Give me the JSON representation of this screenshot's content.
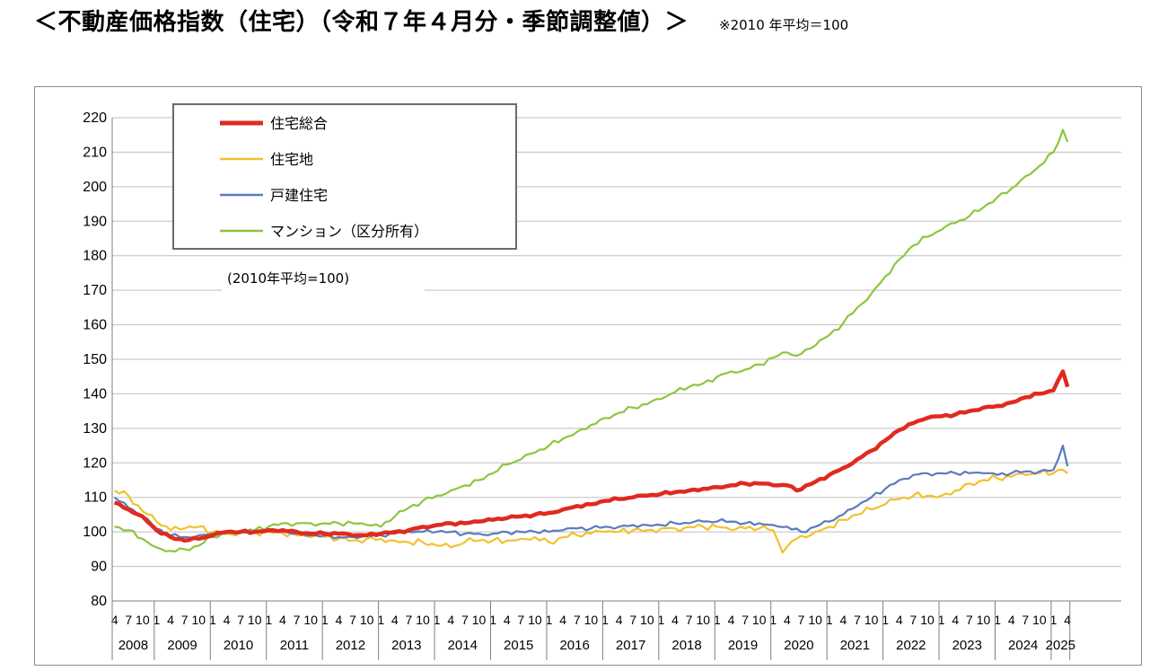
{
  "header": {
    "title": "＜不動産価格指数（住宅）（令和７年４月分・季節調整値）＞",
    "note": "※2010 年平均＝100"
  },
  "chart_data": {
    "type": "line",
    "unit_label": "(2010年平均=100)",
    "ylim": [
      80,
      220
    ],
    "y_ticks": [
      80,
      90,
      100,
      110,
      120,
      130,
      140,
      150,
      160,
      170,
      180,
      190,
      200,
      210,
      220
    ],
    "grid": true,
    "legend_position": "top-left",
    "x_month_ticks": [
      "1",
      "4",
      "7",
      "10"
    ],
    "years": [
      "2008",
      "2009",
      "2010",
      "2011",
      "2012",
      "2013",
      "2014",
      "2015",
      "2016",
      "2017",
      "2018",
      "2019",
      "2020",
      "2021",
      "2022",
      "2023",
      "2024",
      "2025"
    ],
    "x_start": "2008-04",
    "x_end": "2025-04",
    "series": [
      {
        "name": "住宅総合",
        "color": "#e02a20",
        "points": [
          [
            "2008-04",
            108.5
          ],
          [
            "2008-07",
            106.5
          ],
          [
            "2008-10",
            104.5
          ],
          [
            "2009-01",
            100.5
          ],
          [
            "2009-04",
            98.5
          ],
          [
            "2009-07",
            97.5
          ],
          [
            "2009-10",
            98
          ],
          [
            "2010-01",
            99
          ],
          [
            "2010-04",
            100
          ],
          [
            "2010-07",
            100
          ],
          [
            "2010-10",
            100
          ],
          [
            "2011-01",
            100.5
          ],
          [
            "2011-04",
            100.5
          ],
          [
            "2011-07",
            100
          ],
          [
            "2011-10",
            99.5
          ],
          [
            "2012-01",
            99.5
          ],
          [
            "2012-04",
            99.5
          ],
          [
            "2012-07",
            99
          ],
          [
            "2012-10",
            99
          ],
          [
            "2013-01",
            99.5
          ],
          [
            "2013-04",
            100
          ],
          [
            "2013-07",
            100.5
          ],
          [
            "2013-10",
            101.5
          ],
          [
            "2014-01",
            102
          ],
          [
            "2014-04",
            102.5
          ],
          [
            "2014-07",
            102.5
          ],
          [
            "2014-10",
            103
          ],
          [
            "2015-01",
            103.5
          ],
          [
            "2015-04",
            104
          ],
          [
            "2015-07",
            104.5
          ],
          [
            "2015-10",
            105
          ],
          [
            "2016-01",
            105.5
          ],
          [
            "2016-04",
            106.5
          ],
          [
            "2016-07",
            107.5
          ],
          [
            "2016-10",
            108
          ],
          [
            "2017-01",
            109
          ],
          [
            "2017-04",
            109.5
          ],
          [
            "2017-07",
            110
          ],
          [
            "2017-10",
            110.5
          ],
          [
            "2018-01",
            111
          ],
          [
            "2018-04",
            111.5
          ],
          [
            "2018-07",
            112
          ],
          [
            "2018-10",
            112.5
          ],
          [
            "2019-01",
            113
          ],
          [
            "2019-04",
            113.5
          ],
          [
            "2019-07",
            114
          ],
          [
            "2019-10",
            114
          ],
          [
            "2020-01",
            113.5
          ],
          [
            "2020-04",
            113.5
          ],
          [
            "2020-06",
            112
          ],
          [
            "2020-10",
            114.5
          ],
          [
            "2021-01",
            116.5
          ],
          [
            "2021-04",
            118.5
          ],
          [
            "2021-07",
            121
          ],
          [
            "2021-10",
            123.5
          ],
          [
            "2022-01",
            126.5
          ],
          [
            "2022-04",
            129.5
          ],
          [
            "2022-07",
            131.5
          ],
          [
            "2022-10",
            133
          ],
          [
            "2023-01",
            133.5
          ],
          [
            "2023-04",
            134
          ],
          [
            "2023-07",
            135
          ],
          [
            "2023-10",
            136
          ],
          [
            "2024-01",
            136.5
          ],
          [
            "2024-04",
            137.5
          ],
          [
            "2024-07",
            139
          ],
          [
            "2024-10",
            140
          ],
          [
            "2025-01",
            141
          ],
          [
            "2025-03",
            146.5
          ],
          [
            "2025-04",
            142
          ]
        ]
      },
      {
        "name": "住宅地",
        "color": "#f2c12e",
        "points": [
          [
            "2008-04",
            112
          ],
          [
            "2008-07",
            110.5
          ],
          [
            "2008-10",
            106
          ],
          [
            "2009-01",
            103
          ],
          [
            "2009-04",
            100.5
          ],
          [
            "2009-07",
            101
          ],
          [
            "2009-10",
            101.5
          ],
          [
            "2010-01",
            100
          ],
          [
            "2010-04",
            99.5
          ],
          [
            "2010-07",
            100
          ],
          [
            "2010-10",
            100
          ],
          [
            "2011-01",
            100
          ],
          [
            "2011-04",
            99.5
          ],
          [
            "2011-07",
            99
          ],
          [
            "2011-10",
            98.5
          ],
          [
            "2012-01",
            98.5
          ],
          [
            "2012-04",
            98
          ],
          [
            "2012-07",
            97.5
          ],
          [
            "2012-10",
            98
          ],
          [
            "2013-01",
            98
          ],
          [
            "2013-04",
            97.5
          ],
          [
            "2013-07",
            97
          ],
          [
            "2013-10",
            97
          ],
          [
            "2014-01",
            96
          ],
          [
            "2014-04",
            95.5
          ],
          [
            "2014-07",
            97
          ],
          [
            "2014-10",
            97.5
          ],
          [
            "2015-01",
            97.5
          ],
          [
            "2015-04",
            97.5
          ],
          [
            "2015-07",
            98
          ],
          [
            "2015-10",
            98.5
          ],
          [
            "2016-01",
            97
          ],
          [
            "2016-04",
            98.5
          ],
          [
            "2016-07",
            99
          ],
          [
            "2016-10",
            99.5
          ],
          [
            "2017-01",
            100
          ],
          [
            "2017-04",
            100
          ],
          [
            "2017-07",
            100.5
          ],
          [
            "2017-10",
            100.5
          ],
          [
            "2018-01",
            101
          ],
          [
            "2018-04",
            101
          ],
          [
            "2018-07",
            101.5
          ],
          [
            "2018-10",
            101.5
          ],
          [
            "2019-01",
            101.5
          ],
          [
            "2019-04",
            100.5
          ],
          [
            "2019-07",
            101
          ],
          [
            "2019-10",
            101
          ],
          [
            "2020-01",
            100.5
          ],
          [
            "2020-03",
            94
          ],
          [
            "2020-06",
            98
          ],
          [
            "2020-10",
            100
          ],
          [
            "2021-01",
            101.5
          ],
          [
            "2021-04",
            103.5
          ],
          [
            "2021-07",
            105
          ],
          [
            "2021-10",
            106.5
          ],
          [
            "2022-01",
            108
          ],
          [
            "2022-04",
            109.5
          ],
          [
            "2022-07",
            110.5
          ],
          [
            "2022-10",
            110.5
          ],
          [
            "2023-01",
            110.5
          ],
          [
            "2023-04",
            112
          ],
          [
            "2023-07",
            114
          ],
          [
            "2023-10",
            115
          ],
          [
            "2024-01",
            115.5
          ],
          [
            "2024-04",
            116
          ],
          [
            "2024-07",
            116.5
          ],
          [
            "2024-10",
            117
          ],
          [
            "2025-01",
            117
          ],
          [
            "2025-03",
            118
          ],
          [
            "2025-04",
            117
          ]
        ]
      },
      {
        "name": "戸建住宅",
        "color": "#5b7bbd",
        "points": [
          [
            "2008-04",
            110
          ],
          [
            "2008-07",
            107
          ],
          [
            "2008-10",
            104.5
          ],
          [
            "2009-01",
            101
          ],
          [
            "2009-04",
            99
          ],
          [
            "2009-07",
            98.5
          ],
          [
            "2009-10",
            99
          ],
          [
            "2010-01",
            99.5
          ],
          [
            "2010-04",
            100
          ],
          [
            "2010-07",
            100
          ],
          [
            "2010-10",
            100
          ],
          [
            "2011-01",
            100.5
          ],
          [
            "2011-04",
            100
          ],
          [
            "2011-07",
            99.5
          ],
          [
            "2011-10",
            99
          ],
          [
            "2012-01",
            99
          ],
          [
            "2012-04",
            98.5
          ],
          [
            "2012-07",
            98.5
          ],
          [
            "2012-10",
            99
          ],
          [
            "2013-01",
            99
          ],
          [
            "2013-04",
            99.5
          ],
          [
            "2013-07",
            100
          ],
          [
            "2013-10",
            100
          ],
          [
            "2014-01",
            100
          ],
          [
            "2014-04",
            100
          ],
          [
            "2014-07",
            99.5
          ],
          [
            "2014-10",
            99.5
          ],
          [
            "2015-01",
            99.5
          ],
          [
            "2015-04",
            100
          ],
          [
            "2015-07",
            100
          ],
          [
            "2015-10",
            100
          ],
          [
            "2016-01",
            100
          ],
          [
            "2016-04",
            100.5
          ],
          [
            "2016-07",
            101
          ],
          [
            "2016-10",
            101
          ],
          [
            "2017-01",
            101.5
          ],
          [
            "2017-04",
            101.5
          ],
          [
            "2017-07",
            102
          ],
          [
            "2017-10",
            102
          ],
          [
            "2018-01",
            102
          ],
          [
            "2018-04",
            102.5
          ],
          [
            "2018-07",
            102.5
          ],
          [
            "2018-10",
            103
          ],
          [
            "2019-01",
            103
          ],
          [
            "2019-04",
            103
          ],
          [
            "2019-07",
            102.5
          ],
          [
            "2019-10",
            102.5
          ],
          [
            "2020-01",
            102
          ],
          [
            "2020-04",
            101.5
          ],
          [
            "2020-07",
            100
          ],
          [
            "2020-10",
            101.5
          ],
          [
            "2021-01",
            103
          ],
          [
            "2021-04",
            105
          ],
          [
            "2021-07",
            107.5
          ],
          [
            "2021-10",
            110
          ],
          [
            "2022-01",
            112.5
          ],
          [
            "2022-04",
            115
          ],
          [
            "2022-07",
            116.5
          ],
          [
            "2022-10",
            117
          ],
          [
            "2023-01",
            117
          ],
          [
            "2023-04",
            117
          ],
          [
            "2023-07",
            117
          ],
          [
            "2023-10",
            117
          ],
          [
            "2024-01",
            116.5
          ],
          [
            "2024-04",
            117
          ],
          [
            "2024-07",
            117.5
          ],
          [
            "2024-10",
            117.5
          ],
          [
            "2025-01",
            118
          ],
          [
            "2025-03",
            125
          ],
          [
            "2025-04",
            119
          ]
        ]
      },
      {
        "name": "マンション（区分所有）",
        "color": "#8cc63e",
        "points": [
          [
            "2008-04",
            101.5
          ],
          [
            "2008-07",
            100.5
          ],
          [
            "2008-10",
            98
          ],
          [
            "2009-01",
            95.5
          ],
          [
            "2009-04",
            94.5
          ],
          [
            "2009-07",
            95
          ],
          [
            "2009-10",
            96
          ],
          [
            "2010-01",
            98.5
          ],
          [
            "2010-04",
            99.5
          ],
          [
            "2010-07",
            100
          ],
          [
            "2010-10",
            100.5
          ],
          [
            "2011-01",
            101.5
          ],
          [
            "2011-04",
            102.5
          ],
          [
            "2011-07",
            102.5
          ],
          [
            "2011-10",
            102.5
          ],
          [
            "2012-01",
            102.5
          ],
          [
            "2012-04",
            102.5
          ],
          [
            "2012-07",
            102.5
          ],
          [
            "2012-10",
            102
          ],
          [
            "2013-01",
            101.5
          ],
          [
            "2013-04",
            104.5
          ],
          [
            "2013-07",
            107
          ],
          [
            "2013-10",
            109
          ],
          [
            "2014-01",
            110.5
          ],
          [
            "2014-04",
            112
          ],
          [
            "2014-07",
            113.5
          ],
          [
            "2014-10",
            115
          ],
          [
            "2015-01",
            117
          ],
          [
            "2015-04",
            119.5
          ],
          [
            "2015-07",
            121
          ],
          [
            "2015-10",
            123
          ],
          [
            "2016-01",
            125
          ],
          [
            "2016-04",
            127
          ],
          [
            "2016-07",
            129
          ],
          [
            "2016-10",
            131
          ],
          [
            "2017-01",
            133
          ],
          [
            "2017-04",
            134.5
          ],
          [
            "2017-07",
            136
          ],
          [
            "2017-10",
            137
          ],
          [
            "2018-01",
            138.5
          ],
          [
            "2018-04",
            140.5
          ],
          [
            "2018-07",
            142
          ],
          [
            "2018-10",
            143
          ],
          [
            "2019-01",
            145
          ],
          [
            "2019-04",
            146.5
          ],
          [
            "2019-07",
            147
          ],
          [
            "2019-10",
            148.5
          ],
          [
            "2020-01",
            150.5
          ],
          [
            "2020-04",
            152
          ],
          [
            "2020-06",
            151
          ],
          [
            "2020-10",
            154
          ],
          [
            "2021-01",
            157
          ],
          [
            "2021-04",
            160.5
          ],
          [
            "2021-07",
            165
          ],
          [
            "2021-10",
            169
          ],
          [
            "2022-01",
            174
          ],
          [
            "2022-04",
            179
          ],
          [
            "2022-07",
            183
          ],
          [
            "2022-10",
            185.5
          ],
          [
            "2023-01",
            187.5
          ],
          [
            "2023-04",
            189.5
          ],
          [
            "2023-07",
            191.5
          ],
          [
            "2023-10",
            194
          ],
          [
            "2024-01",
            197
          ],
          [
            "2024-04",
            199.5
          ],
          [
            "2024-07",
            203
          ],
          [
            "2024-10",
            206
          ],
          [
            "2025-01",
            210
          ],
          [
            "2025-03",
            216.5
          ],
          [
            "2025-04",
            213
          ]
        ]
      }
    ]
  }
}
